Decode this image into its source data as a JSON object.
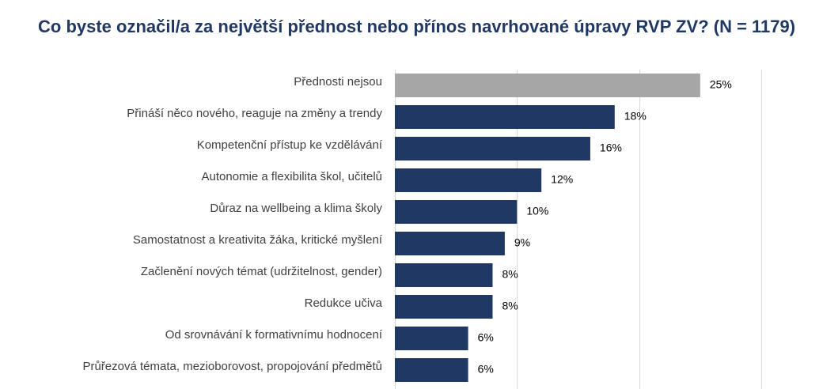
{
  "chart_data": {
    "type": "bar",
    "orientation": "horizontal",
    "title": "Co byste označil/a za největší přednost nebo přínos navrhované úpravy RVP ZV? (N = 1179)",
    "categories": [
      "Přednosti nejsou",
      "Přináší něco nového, reaguje na změny a trendy",
      "Kompetenční přístup ke vzdělávání",
      "Autonomie a flexibilita škol, učitelů",
      "Důraz na wellbeing a klima školy",
      "Samostatnost a kreativita žáka, kritické myšlení",
      "Začlenění nových témat (udržitelnost, gender)",
      "Redukce učiva",
      "Od srovnávání k formativnímu hodnocení",
      "Průřezová témata, mezioborovost, propojování předmětů"
    ],
    "values": [
      25,
      18,
      16,
      12,
      10,
      9,
      8,
      8,
      6,
      6
    ],
    "value_labels": [
      "25%",
      "18%",
      "16%",
      "12%",
      "10%",
      "9%",
      "8%",
      "8%",
      "6%",
      "6%"
    ],
    "xlim": [
      0,
      30
    ],
    "grid": true,
    "colors": {
      "highlight": "#a6a6a6",
      "bar": "#1f3864",
      "title": "#1f3864",
      "grid": "#d9d9d9"
    }
  }
}
